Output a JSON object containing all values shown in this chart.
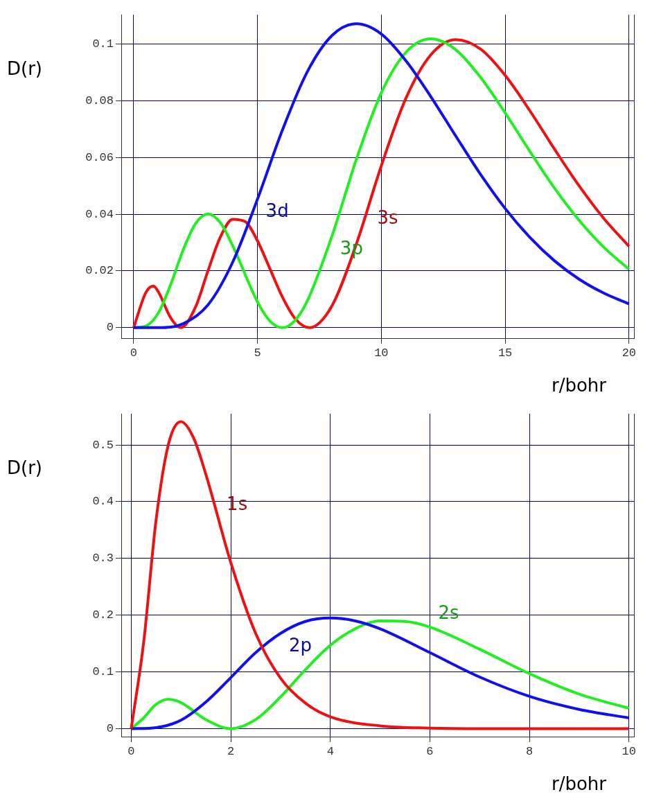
{
  "chart_data": [
    {
      "type": "line",
      "xlabel": "r/bohr",
      "ylabel": "D(r)",
      "xlim": [
        -0.5,
        20.2
      ],
      "ylim": [
        -0.0037,
        0.1103
      ],
      "xticks": [
        0,
        5,
        10,
        15,
        20
      ],
      "yticks": [
        0,
        0.02,
        0.04,
        0.06,
        0.08,
        0.1
      ],
      "grid": true,
      "series": [
        {
          "color": "#1010ee",
          "x": [
            0,
            1,
            2,
            3,
            4,
            5,
            6,
            7,
            8,
            9,
            10,
            11,
            12,
            13,
            14,
            15,
            16,
            17,
            18,
            19,
            20
          ],
          "values": [
            0,
            0,
            0.0014,
            0.008,
            0.0231,
            0.0453,
            0.0695,
            0.09,
            0.1029,
            0.1071,
            0.1035,
            0.094,
            0.0814,
            0.0676,
            0.0541,
            0.042,
            0.0318,
            0.0235,
            0.017,
            0.0121,
            0.0084
          ]
        },
        {
          "color": "#22ee22",
          "x": [
            0,
            0.5,
            1,
            1.5,
            2,
            2.5,
            3,
            3.5,
            4,
            5,
            5.5,
            6,
            6.5,
            7,
            8,
            9,
            10,
            11,
            12,
            13,
            14,
            15,
            16,
            17,
            18,
            19,
            20
          ],
          "values": [
            0,
            0.0006,
            0.0052,
            0.0153,
            0.0274,
            0.0367,
            0.0401,
            0.037,
            0.0289,
            0.0091,
            0.0024,
            0,
            0.0024,
            0.0092,
            0.0321,
            0.0595,
            0.0828,
            0.0971,
            0.1018,
            0.098,
            0.0883,
            0.0757,
            0.0621,
            0.0491,
            0.0377,
            0.0282,
            0.0206
          ]
        },
        {
          "color": "#ee1111",
          "x": [
            0,
            0.5,
            0.8,
            1,
            1.5,
            1.9,
            2.5,
            3,
            3.5,
            4,
            4.5,
            5,
            5.5,
            6,
            6.5,
            7.1,
            8,
            9,
            10,
            11,
            12,
            13,
            14,
            15,
            16,
            17,
            18,
            19,
            20
          ],
          "values": [
            0,
            0.0125,
            0.0147,
            0.0126,
            0.0034,
            0,
            0.0073,
            0.02,
            0.0319,
            0.0382,
            0.0374,
            0.0306,
            0.0208,
            0.0109,
            0.0034,
            0,
            0.0076,
            0.0297,
            0.0571,
            0.081,
            0.0962,
            0.1015,
            0.0982,
            0.0889,
            0.0764,
            0.0628,
            0.0498,
            0.0383,
            0.0287
          ]
        }
      ],
      "annotations": [
        {
          "text": "3d",
          "x": 5,
          "y": 0.0453
        },
        {
          "text": "3p",
          "x": 8,
          "y": 0.0321
        },
        {
          "text": "3s",
          "x": 9.5,
          "y": 0.043
        }
      ]
    },
    {
      "type": "line",
      "xlabel": "r/bohr",
      "ylabel": "D(r)",
      "xlim": [
        -0.2,
        10.1
      ],
      "ylim": [
        -0.014,
        0.555
      ],
      "xticks": [
        0,
        2,
        4,
        6,
        8,
        10
      ],
      "yticks": [
        0,
        0.1,
        0.2,
        0.3,
        0.4,
        0.5
      ],
      "grid": true,
      "series": [
        {
          "color": "#ee1111",
          "x": [
            0,
            0.25,
            0.5,
            0.75,
            1,
            1.25,
            1.5,
            2,
            2.5,
            3,
            3.5,
            4,
            5,
            6,
            7,
            8,
            10
          ],
          "values": [
            0,
            0.152,
            0.368,
            0.502,
            0.541,
            0.513,
            0.448,
            0.293,
            0.168,
            0.089,
            0.045,
            0.021,
            0.005,
            0.001,
            0,
            0,
            0
          ]
        },
        {
          "color": "#1010ee",
          "x": [
            0,
            0.5,
            1,
            1.5,
            2,
            2.5,
            3,
            3.5,
            4,
            4.5,
            5,
            6,
            7,
            8,
            9,
            10
          ],
          "values": [
            0,
            0.002,
            0.015,
            0.047,
            0.09,
            0.134,
            0.168,
            0.189,
            0.195,
            0.19,
            0.176,
            0.134,
            0.091,
            0.057,
            0.034,
            0.019
          ]
        },
        {
          "color": "#22ee22",
          "x": [
            0,
            0.25,
            0.5,
            0.75,
            1,
            1.5,
            2,
            2.5,
            3,
            3.5,
            4,
            4.5,
            5,
            5.5,
            6,
            7,
            8,
            9,
            10
          ],
          "values": [
            0,
            0.019,
            0.043,
            0.052,
            0.046,
            0.016,
            0,
            0.016,
            0.056,
            0.104,
            0.147,
            0.176,
            0.19,
            0.189,
            0.179,
            0.14,
            0.097,
            0.061,
            0.036
          ]
        }
      ],
      "annotations": [
        {
          "text": "1s",
          "x": 1.75,
          "y": 0.37
        },
        {
          "text": "2p",
          "x": 3,
          "y": 0.168
        },
        {
          "text": "2s",
          "x": 6,
          "y": 0.179
        }
      ]
    }
  ]
}
